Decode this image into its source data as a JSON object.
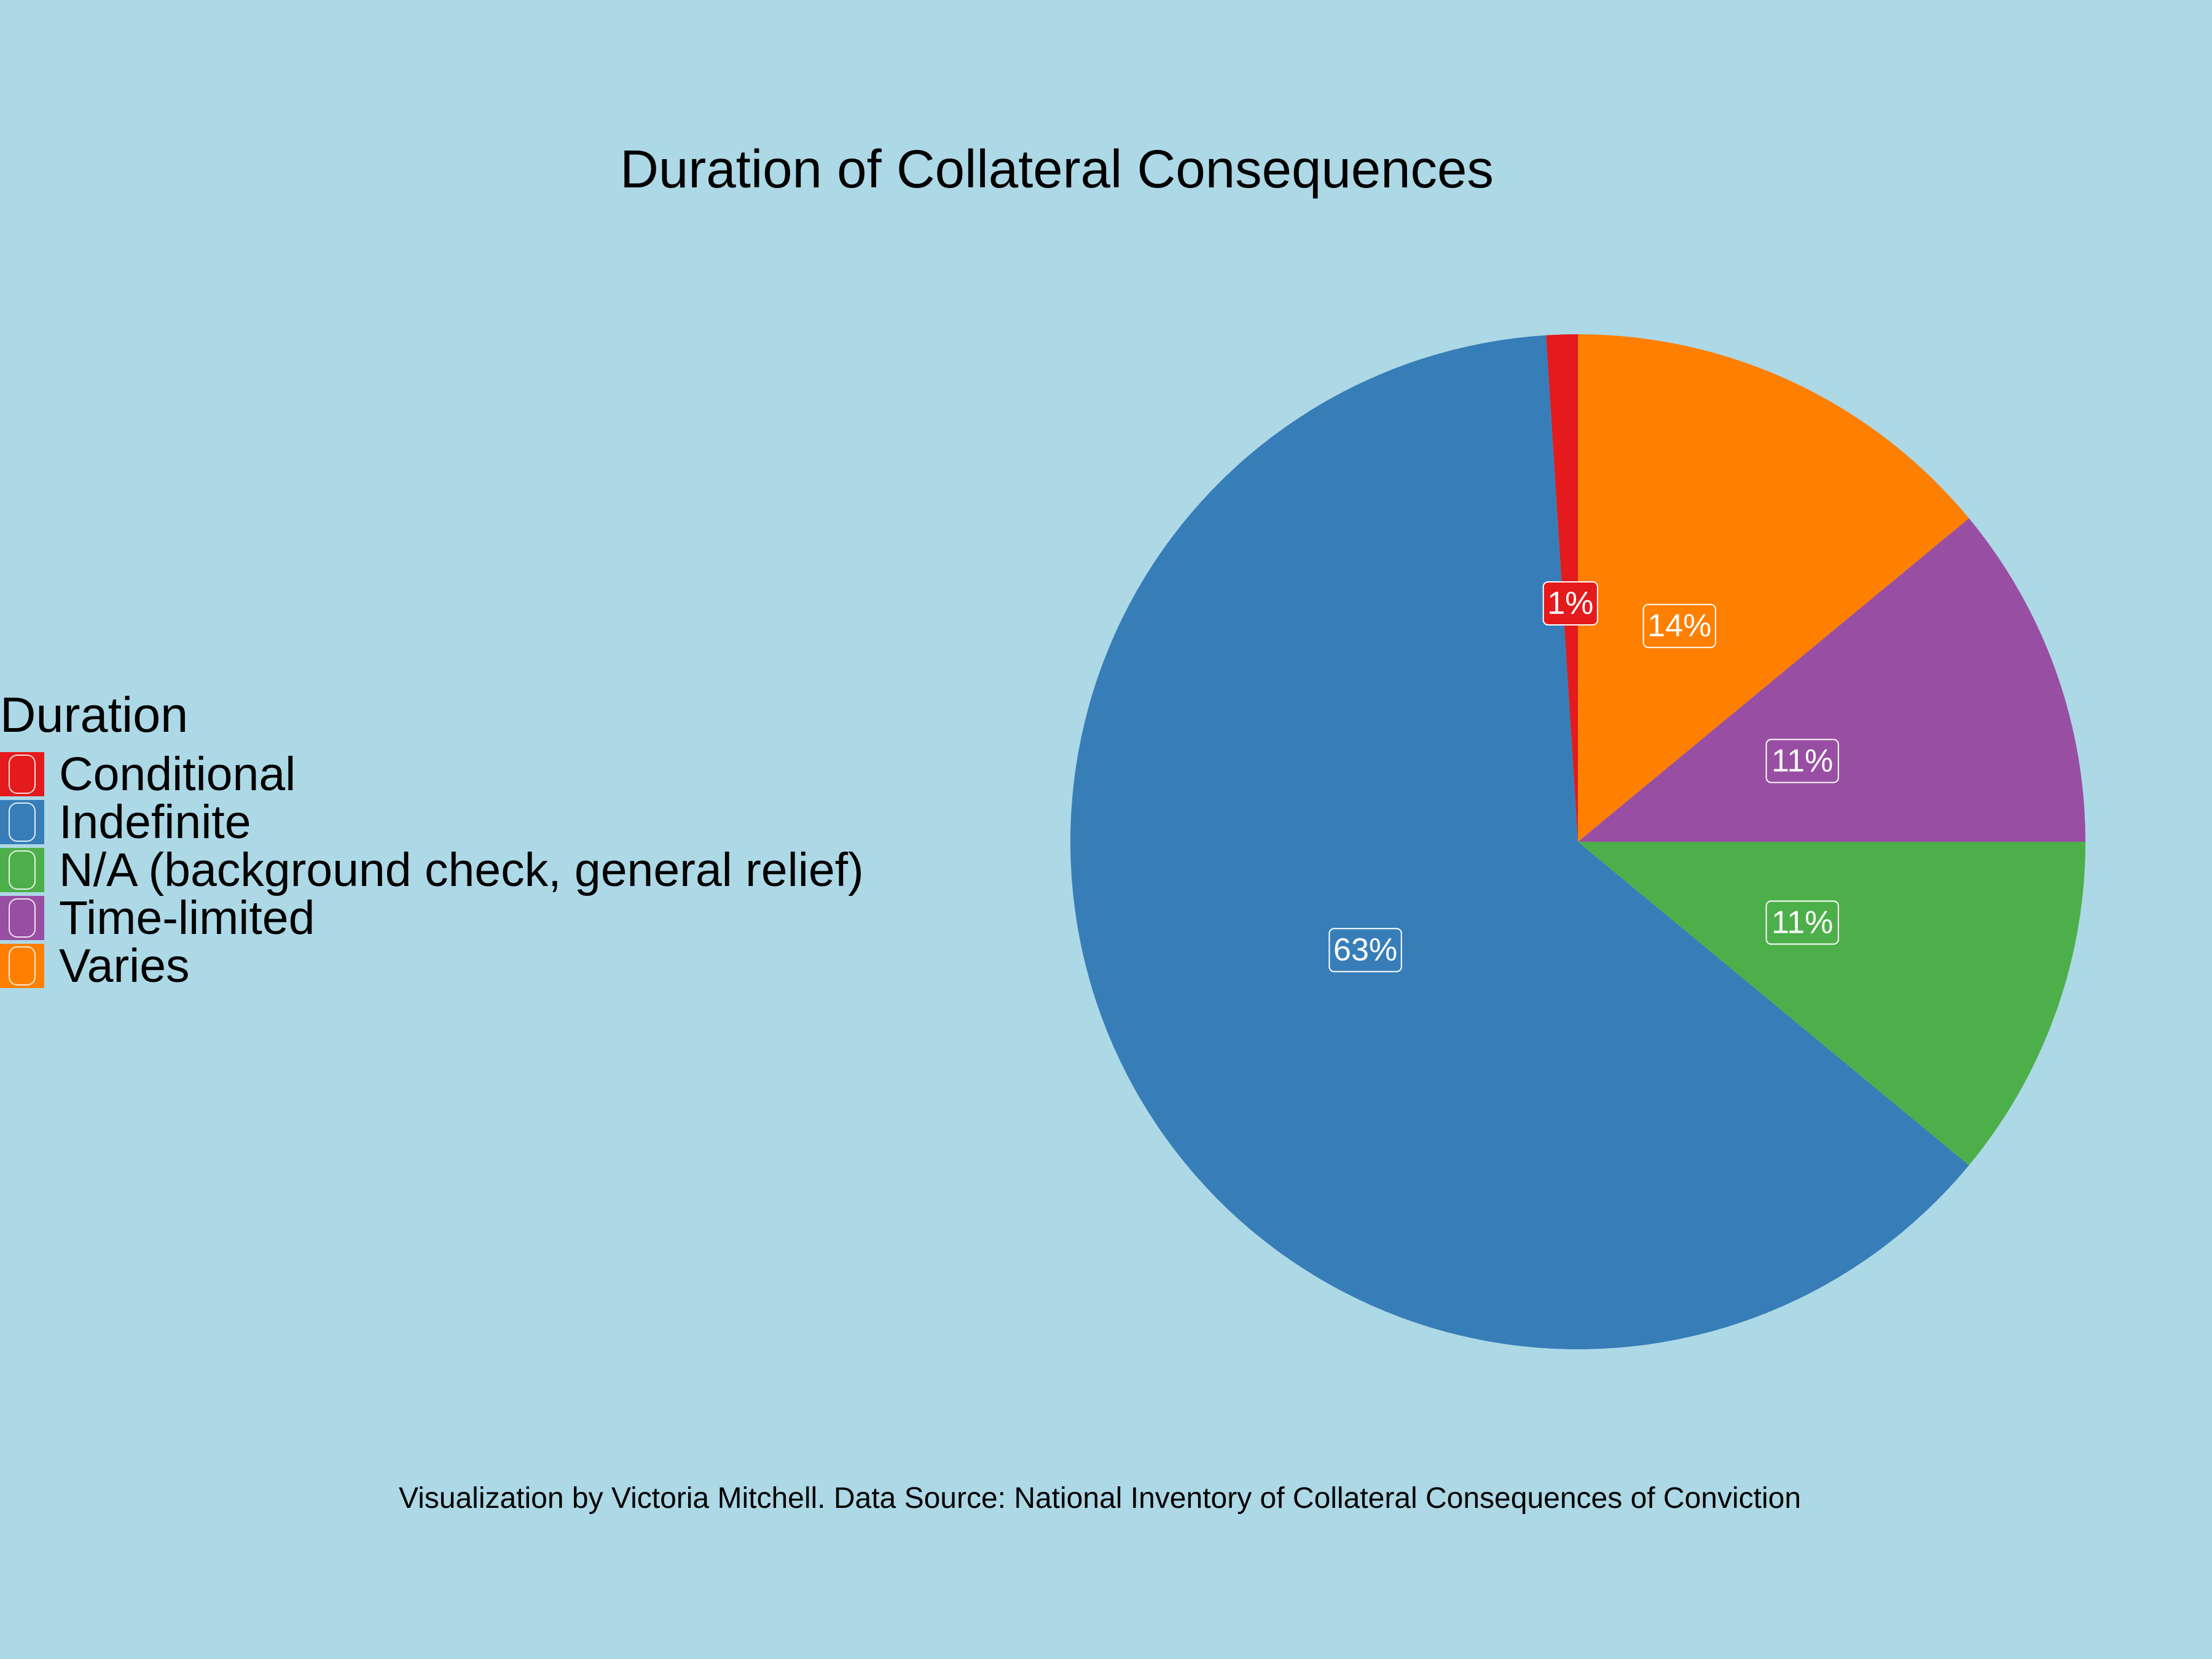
{
  "chart_data": {
    "type": "pie",
    "title": "Duration of Collateral Consequences",
    "legend_title": "Duration",
    "legend_position": "left",
    "categories": [
      "Conditional",
      "Indefinite",
      "N/A (background check, general relief)",
      "Time-limited",
      "Varies"
    ],
    "values": [
      1,
      63,
      11,
      11,
      14
    ],
    "labels": [
      "1%",
      "63%",
      "11%",
      "11%",
      "14%"
    ],
    "colors": [
      "#e41a1c",
      "#377eb8",
      "#4daf4a",
      "#984ea3",
      "#ff7f00"
    ],
    "direction": "counterclockwise",
    "start": "top",
    "caption": "Visualization by Victoria Mitchell. Data Source: National Inventory of Collateral Consequences of Conviction"
  }
}
